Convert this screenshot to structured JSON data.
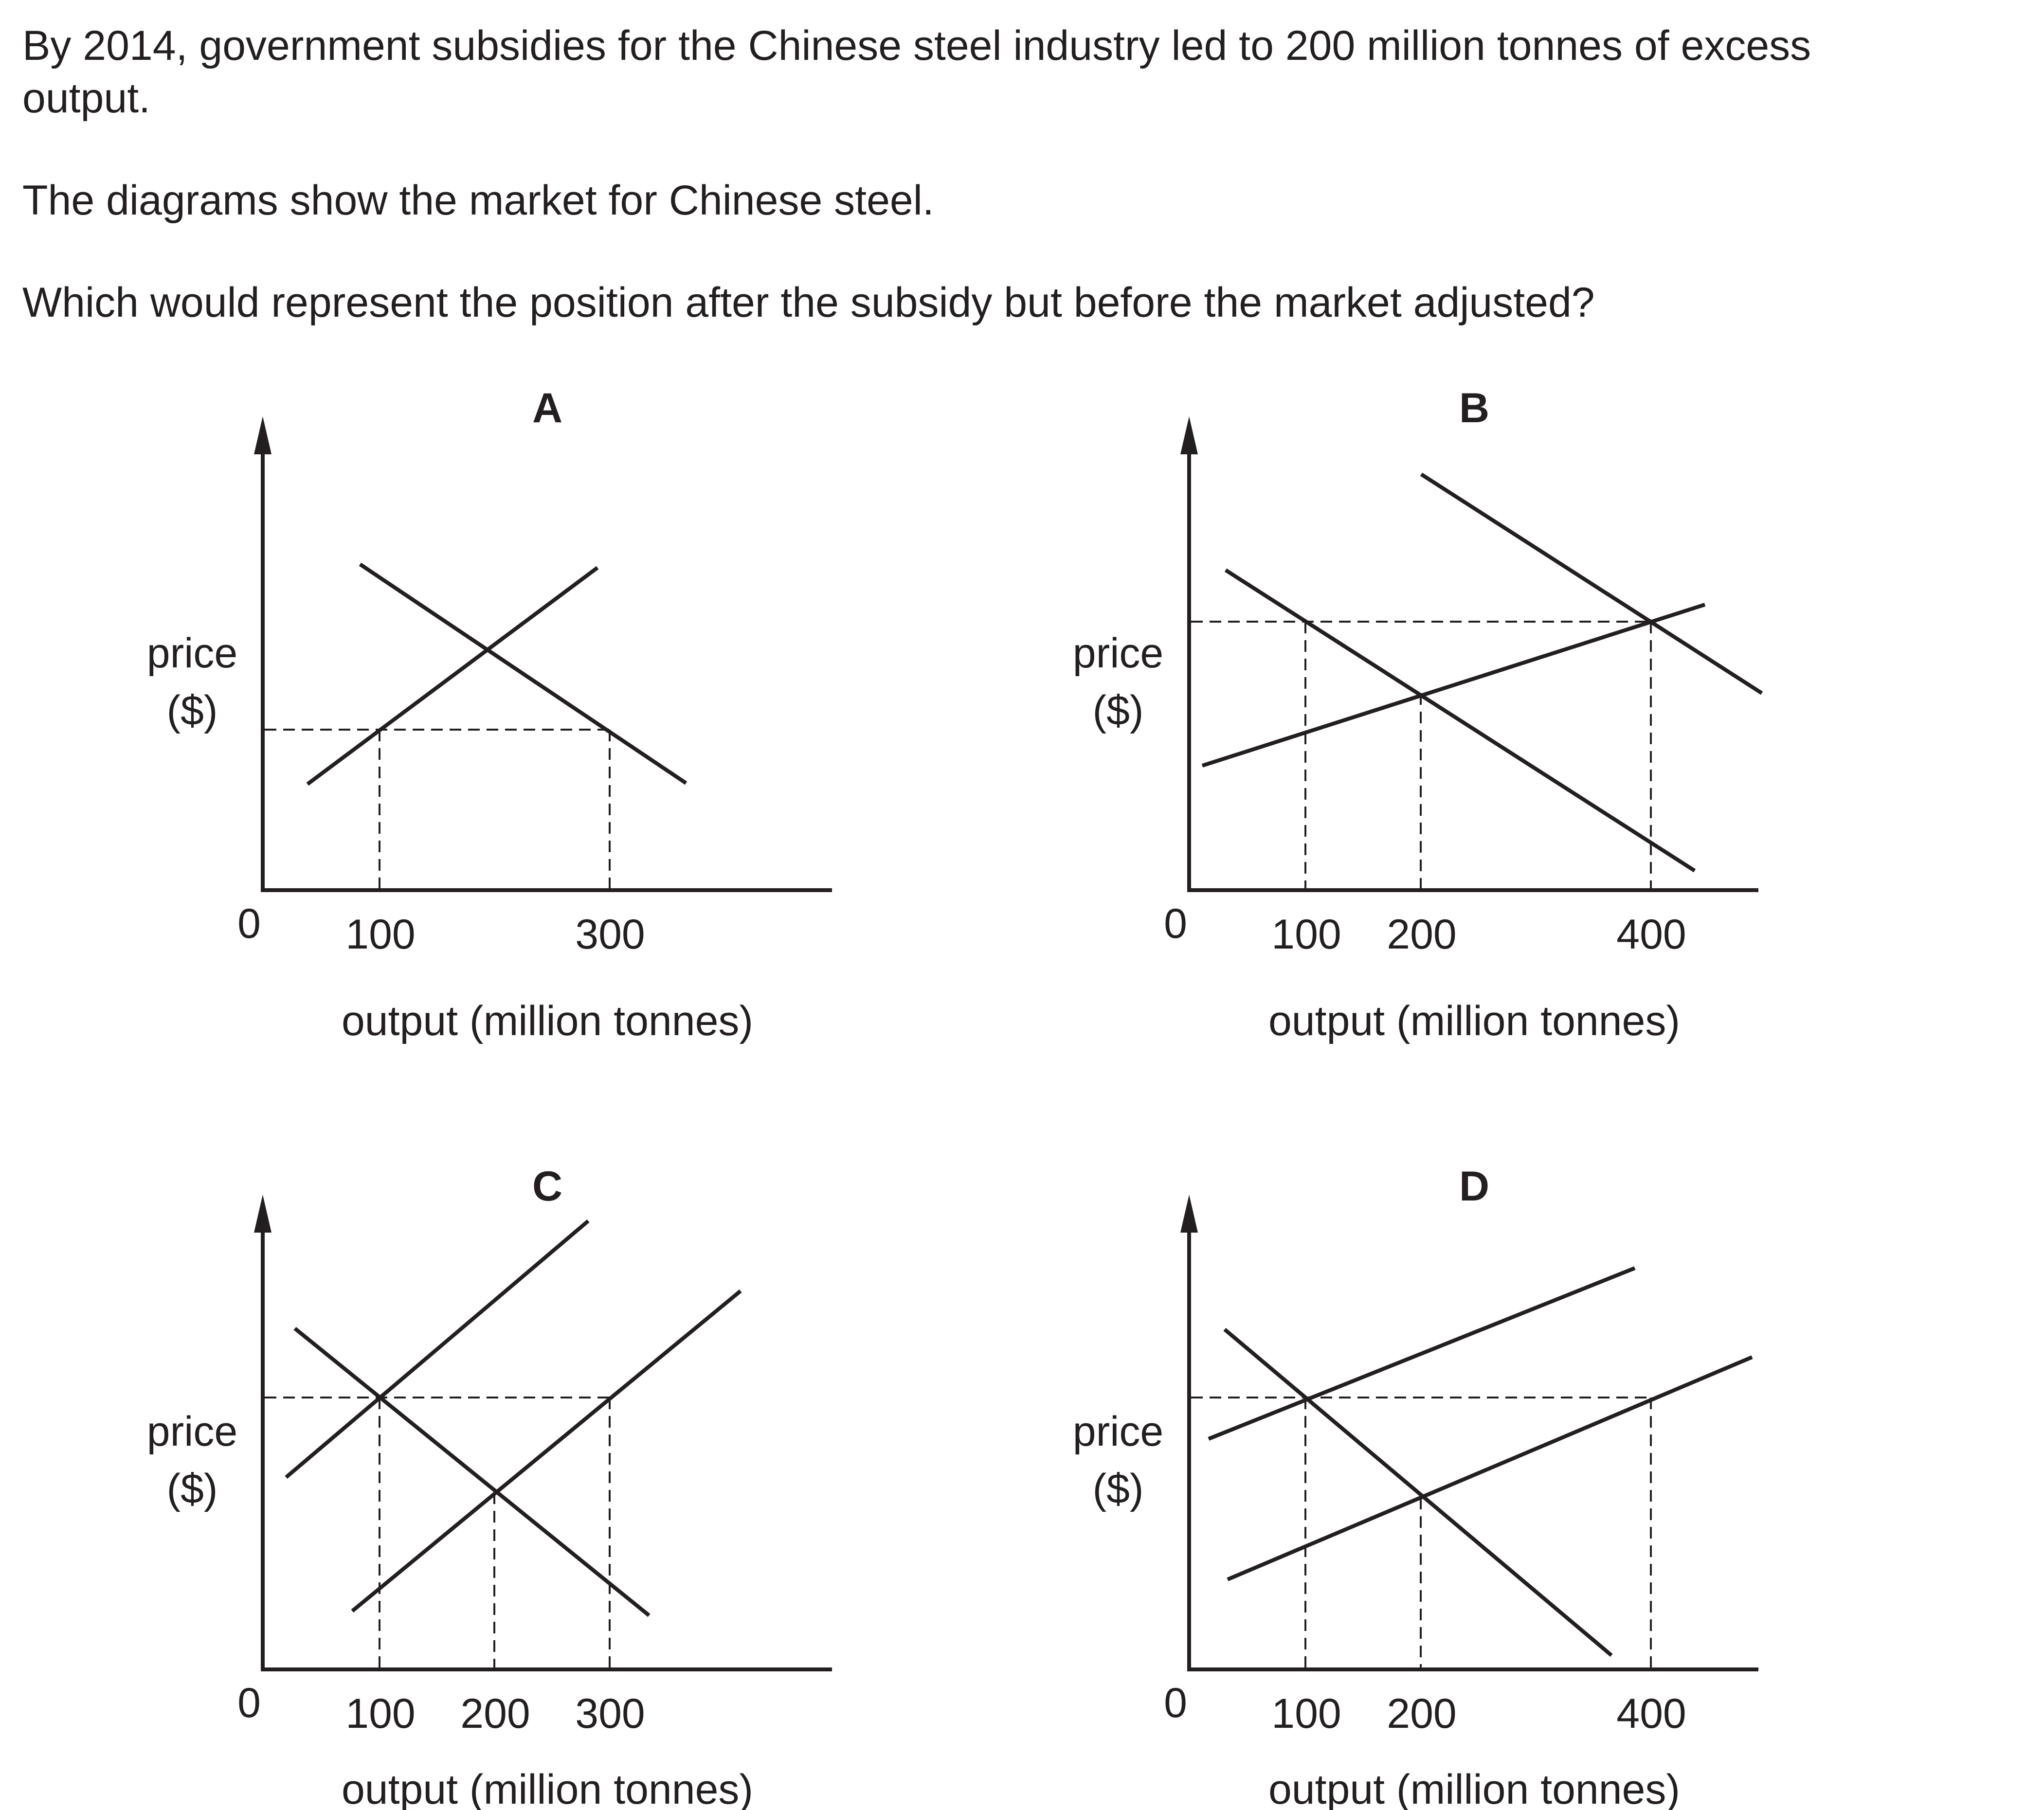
{
  "question": {
    "line1": "By 2014, government subsidies for the Chinese steel industry led to 200 million tonnes of excess",
    "line1b": "output.",
    "line2": "The diagrams show the market for Chinese steel.",
    "line3": "Which would represent the position after the subsidy but before the market adjusted?"
  },
  "diagrams": [
    {
      "title": "A",
      "y_label_1": "price",
      "y_label_2": "($)",
      "x_label": "output (million tonnes)",
      "origin": "0",
      "ticks": [
        "100",
        "300"
      ]
    },
    {
      "title": "B",
      "y_label_1": "price",
      "y_label_2": "($)",
      "x_label": "output (million tonnes)",
      "origin": "0",
      "ticks": [
        "100",
        "200",
        "400"
      ]
    },
    {
      "title": "C",
      "y_label_1": "price",
      "y_label_2": "($)",
      "x_label": "output (million tonnes)",
      "origin": "0",
      "ticks": [
        "100",
        "200",
        "300"
      ]
    },
    {
      "title": "D",
      "y_label_1": "price",
      "y_label_2": "($)",
      "x_label": "output (million tonnes)",
      "origin": "0",
      "ticks": [
        "100",
        "200",
        "400"
      ]
    }
  ]
}
